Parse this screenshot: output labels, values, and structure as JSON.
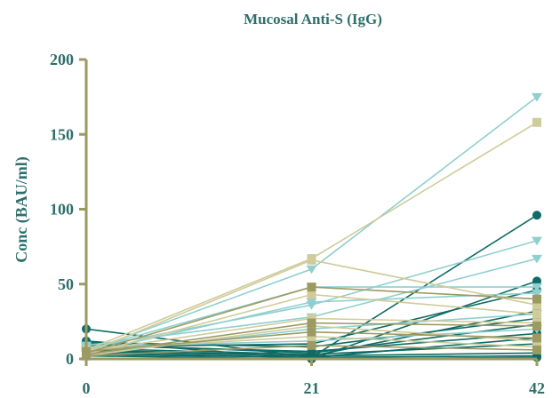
{
  "chart_data": {
    "type": "line",
    "title": "Mucosal Anti-S (IgG)",
    "xlabel": "",
    "ylabel": "Conc  (BAU/ml)",
    "x": [
      0,
      21,
      42
    ],
    "x_ticks": [
      "0",
      "21",
      "42"
    ],
    "ylim": [
      0,
      200
    ],
    "y_ticks": [
      "0",
      "50",
      "100",
      "150",
      "200"
    ],
    "grid": false,
    "legend": "none",
    "colors": {
      "axis": "#9c9a63",
      "text": "#2e6f6c",
      "teal_dark": "#0e6b66",
      "light_blue": "#8fcfcf",
      "tan": "#cfcb9a",
      "olive": "#9c9a63"
    },
    "series": [
      {
        "values": [
          20,
          1,
          96
        ],
        "color": "#0e6b66",
        "marker": "circle"
      },
      {
        "values": [
          12,
          0,
          52
        ],
        "color": "#0e6b66",
        "marker": "circle"
      },
      {
        "values": [
          8,
          10,
          46
        ],
        "color": "#0e6b66",
        "marker": "circle"
      },
      {
        "values": [
          6,
          2,
          32
        ],
        "color": "#0e6b66",
        "marker": "circle"
      },
      {
        "values": [
          10,
          4,
          23
        ],
        "color": "#0e6b66",
        "marker": "circle"
      },
      {
        "values": [
          4,
          1,
          14
        ],
        "color": "#0e6b66",
        "marker": "circle"
      },
      {
        "values": [
          7,
          3,
          10
        ],
        "color": "#0e6b66",
        "marker": "circle"
      },
      {
        "values": [
          5,
          2,
          4
        ],
        "color": "#0e6b66",
        "marker": "circle"
      },
      {
        "values": [
          3,
          1,
          2
        ],
        "color": "#0e6b66",
        "marker": "circle"
      },
      {
        "values": [
          9,
          5,
          17
        ],
        "color": "#0e6b66",
        "marker": "circle"
      },
      {
        "values": [
          2,
          0,
          1
        ],
        "color": "#0e6b66",
        "marker": "circle"
      },
      {
        "values": [
          11,
          8,
          27
        ],
        "color": "#0e6b66",
        "marker": "circle"
      },
      {
        "values": [
          5,
          60,
          175
        ],
        "color": "#8fcfcf",
        "marker": "triangle"
      },
      {
        "values": [
          7,
          36,
          79
        ],
        "color": "#8fcfcf",
        "marker": "triangle"
      },
      {
        "values": [
          9,
          28,
          67
        ],
        "color": "#8fcfcf",
        "marker": "triangle"
      },
      {
        "values": [
          6,
          48,
          48
        ],
        "color": "#8fcfcf",
        "marker": "triangle"
      },
      {
        "values": [
          4,
          38,
          44
        ],
        "color": "#8fcfcf",
        "marker": "triangle"
      },
      {
        "values": [
          3,
          20,
          30
        ],
        "color": "#8fcfcf",
        "marker": "triangle"
      },
      {
        "values": [
          8,
          12,
          20
        ],
        "color": "#8fcfcf",
        "marker": "triangle"
      },
      {
        "values": [
          6,
          67,
          158
        ],
        "color": "#cfcb9a",
        "marker": "square"
      },
      {
        "values": [
          4,
          66,
          36
        ],
        "color": "#cfcb9a",
        "marker": "square"
      },
      {
        "values": [
          3,
          43,
          30
        ],
        "color": "#cfcb9a",
        "marker": "square"
      },
      {
        "values": [
          5,
          27,
          24
        ],
        "color": "#cfcb9a",
        "marker": "square"
      },
      {
        "values": [
          2,
          22,
          12
        ],
        "color": "#cfcb9a",
        "marker": "square"
      },
      {
        "values": [
          6,
          15,
          8
        ],
        "color": "#cfcb9a",
        "marker": "square"
      },
      {
        "values": [
          4,
          48,
          40
        ],
        "color": "#9c9a63",
        "marker": "square"
      },
      {
        "values": [
          3,
          24,
          22
        ],
        "color": "#9c9a63",
        "marker": "square"
      },
      {
        "values": [
          5,
          18,
          14
        ],
        "color": "#9c9a63",
        "marker": "square"
      },
      {
        "values": [
          2,
          9,
          6
        ],
        "color": "#9c9a63",
        "marker": "square"
      }
    ]
  }
}
